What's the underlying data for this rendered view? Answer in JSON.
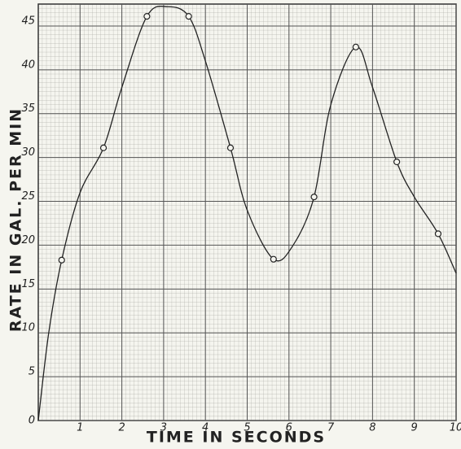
{
  "chart_data": {
    "type": "line",
    "x_label": "TIME IN SECONDS",
    "y_label": "RATE IN GAL. PER MIN",
    "xlim": [
      0,
      10
    ],
    "ylim": [
      0,
      47.5
    ],
    "xticks": [
      1,
      2,
      3,
      4,
      5,
      6,
      7,
      8,
      9,
      10
    ],
    "yticks": [
      0,
      5,
      10,
      15,
      20,
      25,
      30,
      35,
      40,
      45
    ],
    "grid": true,
    "series": [
      {
        "type": "line",
        "color": "#222222",
        "x": [
          0,
          0.25,
          0.56,
          1,
          1.56,
          2,
          2.6,
          3.1,
          3.6,
          4,
          4.6,
          5,
          5.63,
          6.1,
          6.6,
          7,
          7.6,
          8,
          8.58,
          9,
          9.57,
          10
        ],
        "values": [
          0,
          10,
          18.3,
          26,
          31.1,
          38,
          46.1,
          47.2,
          46.1,
          41,
          31.1,
          24,
          18.4,
          20,
          25.5,
          36,
          42.6,
          38,
          29.5,
          25.5,
          21.3,
          16.8
        ]
      },
      {
        "type": "scatter",
        "color": "#222222",
        "x": [
          0.56,
          1.56,
          2.6,
          3.6,
          4.6,
          5.63,
          6.6,
          7.6,
          8.58,
          9.57
        ],
        "values": [
          18.3,
          31.1,
          46.1,
          46.1,
          31.1,
          18.4,
          25.5,
          42.6,
          29.5,
          21.3
        ]
      }
    ]
  }
}
